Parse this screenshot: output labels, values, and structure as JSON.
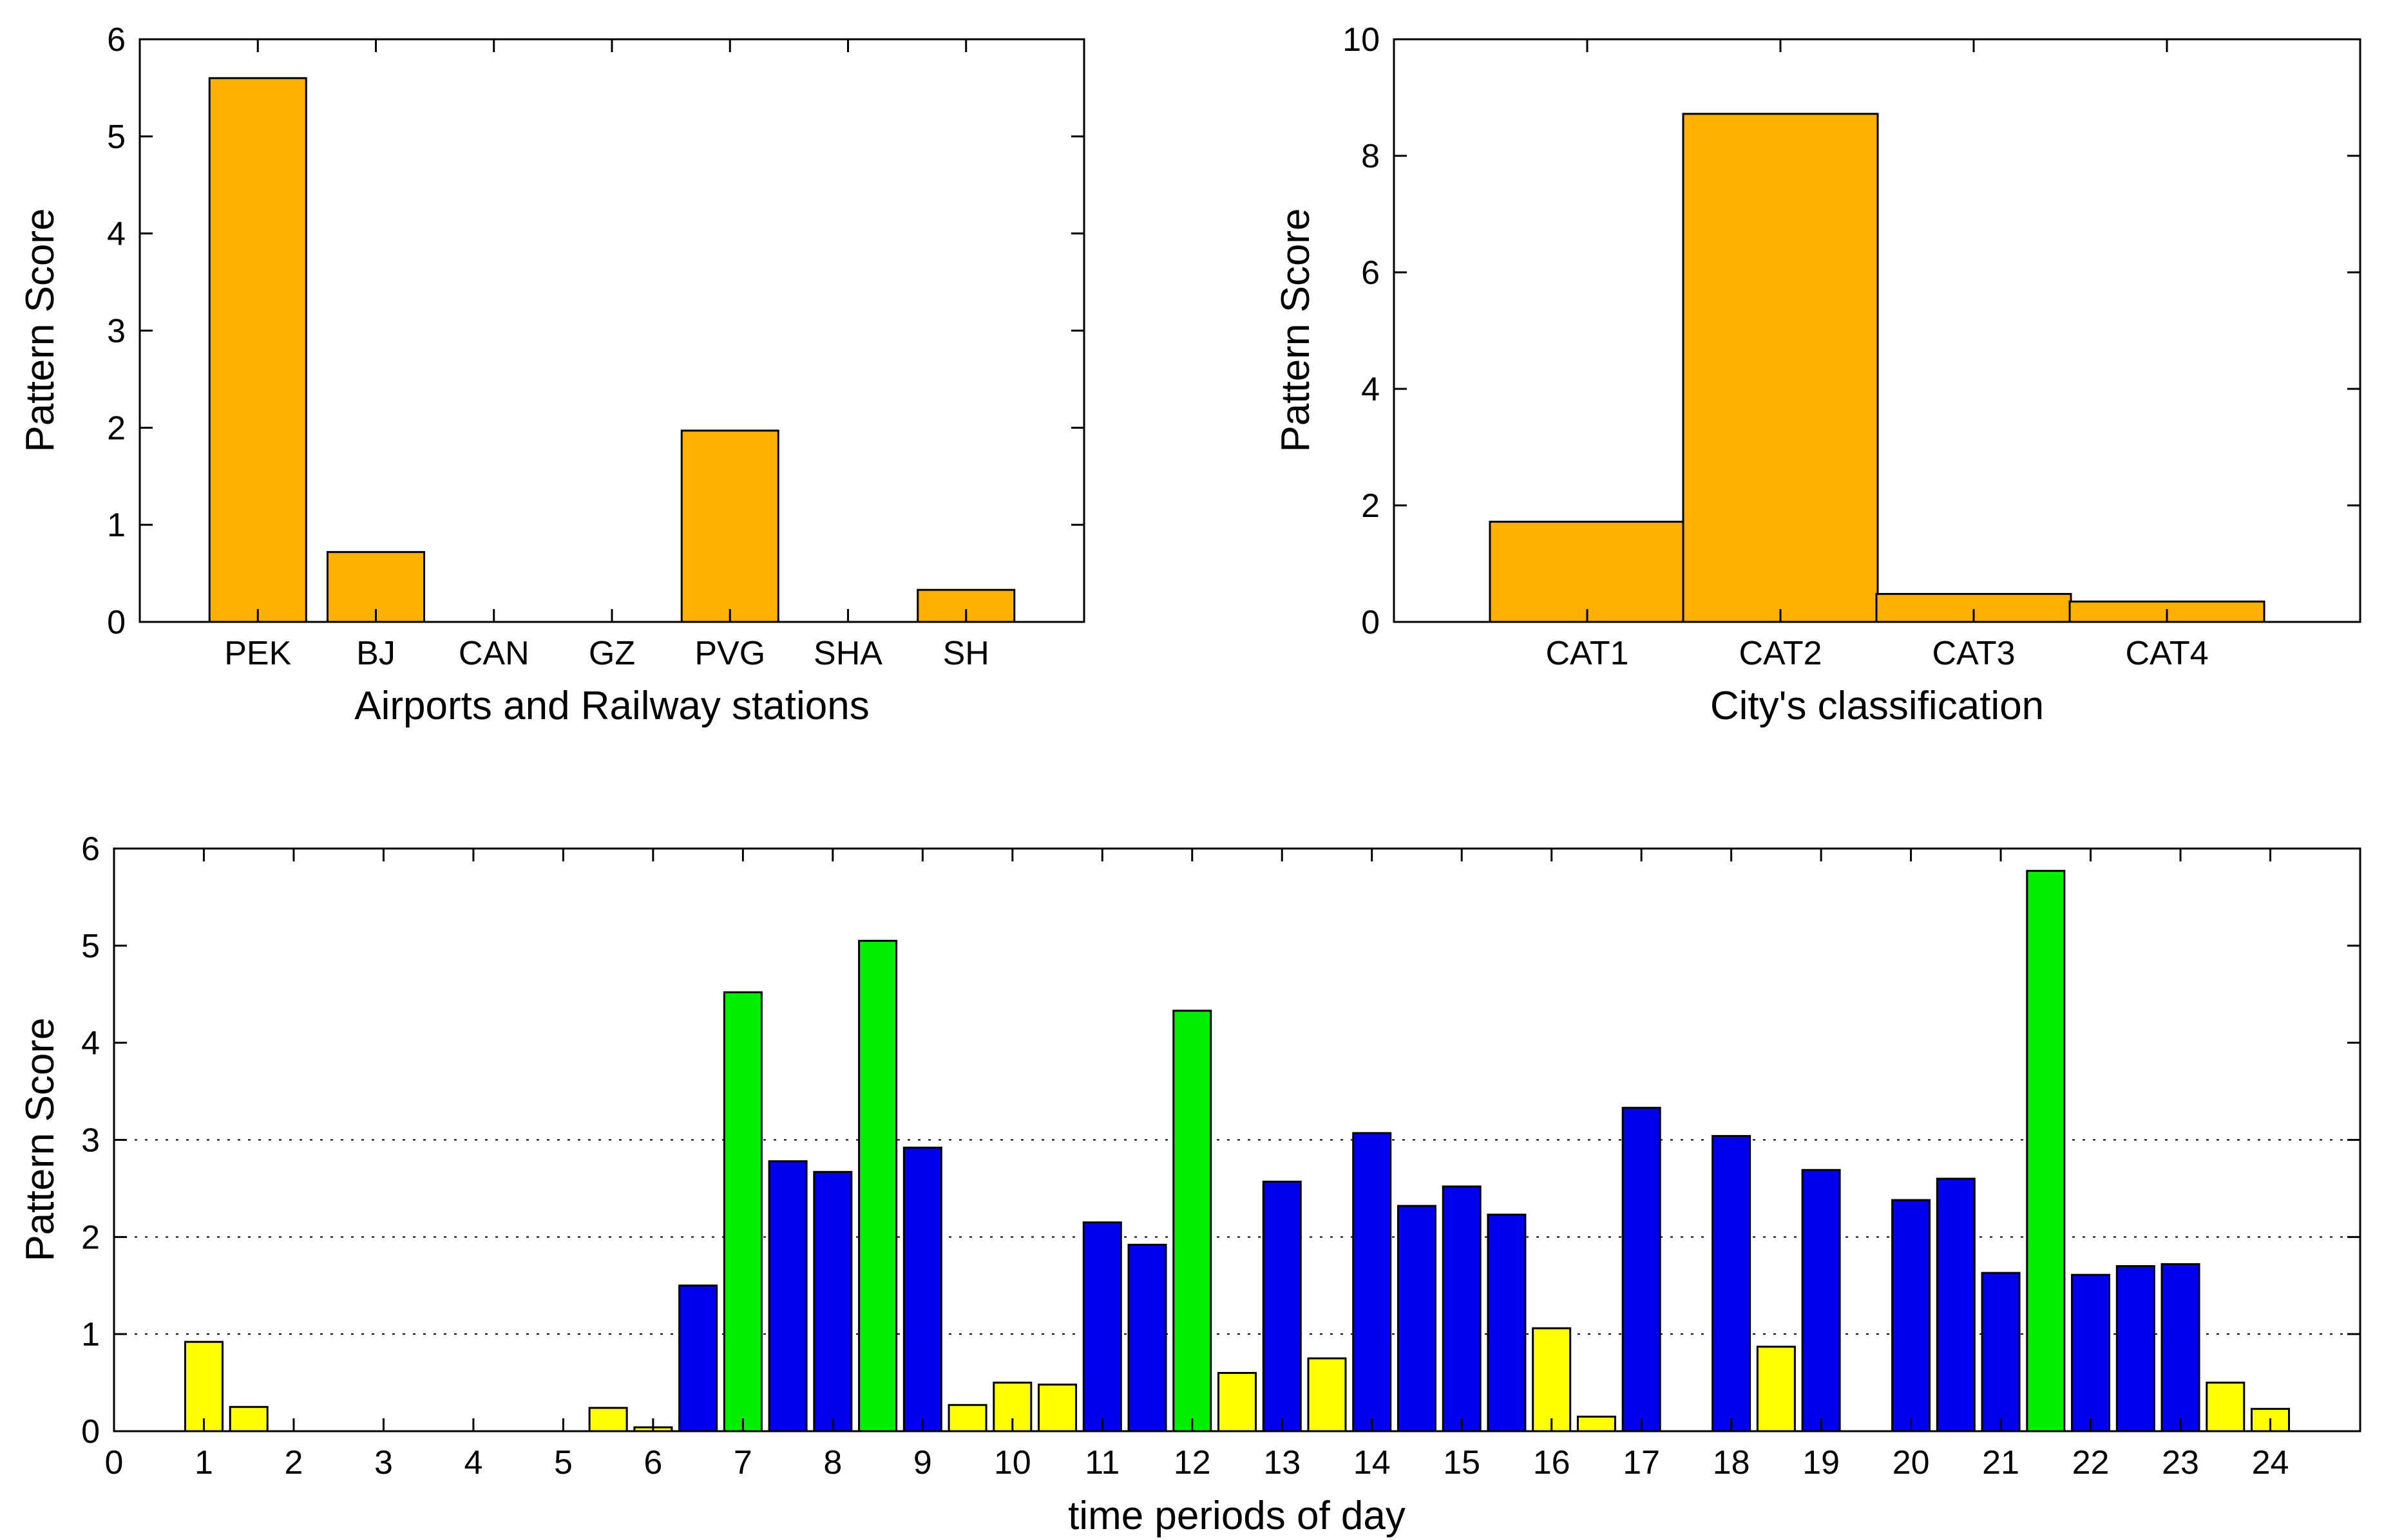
{
  "chart_data": [
    {
      "id": "stations",
      "type": "bar",
      "title": "",
      "xlabel": "Airports and Railway stations",
      "ylabel": "Pattern Score",
      "categories": [
        "PEK",
        "BJ",
        "CAN",
        "GZ",
        "PVG",
        "SHA",
        "SH"
      ],
      "values": [
        5.6,
        0.72,
        0,
        0,
        1.97,
        0,
        0.33
      ],
      "ylim": [
        0,
        6
      ],
      "yticks": [
        0,
        1,
        2,
        3,
        4,
        5,
        6
      ],
      "bar_color": "#FFB000",
      "grid": false
    },
    {
      "id": "classification",
      "type": "bar",
      "title": "",
      "xlabel": "City's classification",
      "ylabel": "Pattern Score",
      "categories": [
        "CAT1",
        "CAT2",
        "CAT3",
        "CAT4"
      ],
      "values": [
        1.72,
        8.72,
        0.48,
        0.35
      ],
      "ylim": [
        0,
        10
      ],
      "yticks": [
        0,
        2,
        4,
        6,
        8,
        10
      ],
      "bar_color": "#FFB000",
      "grid": false
    },
    {
      "id": "time-periods",
      "type": "bar",
      "title": "",
      "xlabel": "time periods of day",
      "ylabel": "Pattern Score",
      "xlim": [
        0,
        25
      ],
      "xticks": [
        0,
        1,
        2,
        3,
        4,
        5,
        6,
        7,
        8,
        9,
        10,
        11,
        12,
        13,
        14,
        15,
        16,
        17,
        18,
        19,
        20,
        21,
        22,
        23,
        24
      ],
      "ylim": [
        0,
        6
      ],
      "yticks": [
        0,
        1,
        2,
        3,
        4,
        5,
        6
      ],
      "grid": true,
      "grid_lines": [
        1,
        2,
        3
      ],
      "colors": {
        "low": "#FFFF00",
        "mid": "#0000EE",
        "high": "#00EE00"
      },
      "x": [
        1,
        1.5,
        2,
        2.5,
        3,
        3.5,
        4,
        4.5,
        5,
        5.5,
        6,
        6.5,
        7,
        7.5,
        8,
        8.5,
        9,
        9.5,
        10,
        10.5,
        11,
        11.5,
        12,
        12.5,
        13,
        13.5,
        14,
        14.5,
        15,
        15.5,
        16,
        16.5,
        17,
        17.5,
        18,
        18.5,
        19,
        19.5,
        20,
        20.5,
        21,
        21.5,
        22,
        22.5,
        23,
        23.5,
        24
      ],
      "values": [
        0.92,
        0.25,
        0,
        0,
        0,
        0,
        0,
        0,
        0,
        0.24,
        0.04,
        1.5,
        4.52,
        2.78,
        2.67,
        5.05,
        2.92,
        0.27,
        0.5,
        0.48,
        2.15,
        1.92,
        4.33,
        0.6,
        2.57,
        0.75,
        3.07,
        2.32,
        2.52,
        2.23,
        1.06,
        0.15,
        3.33,
        0,
        3.04,
        0.87,
        2.69,
        0,
        2.38,
        2.6,
        1.63,
        5.77,
        1.61,
        1.7,
        1.72,
        0.5,
        0.23
      ],
      "categories": [
        "low",
        "low",
        "low",
        "low",
        "low",
        "low",
        "low",
        "low",
        "low",
        "low",
        "low",
        "mid",
        "high",
        "mid",
        "mid",
        "high",
        "mid",
        "low",
        "low",
        "low",
        "mid",
        "mid",
        "high",
        "low",
        "mid",
        "low",
        "mid",
        "mid",
        "mid",
        "mid",
        "low",
        "low",
        "mid",
        "low",
        "mid",
        "low",
        "mid",
        "low",
        "mid",
        "mid",
        "mid",
        "high",
        "mid",
        "mid",
        "mid",
        "low",
        "low"
      ]
    }
  ]
}
